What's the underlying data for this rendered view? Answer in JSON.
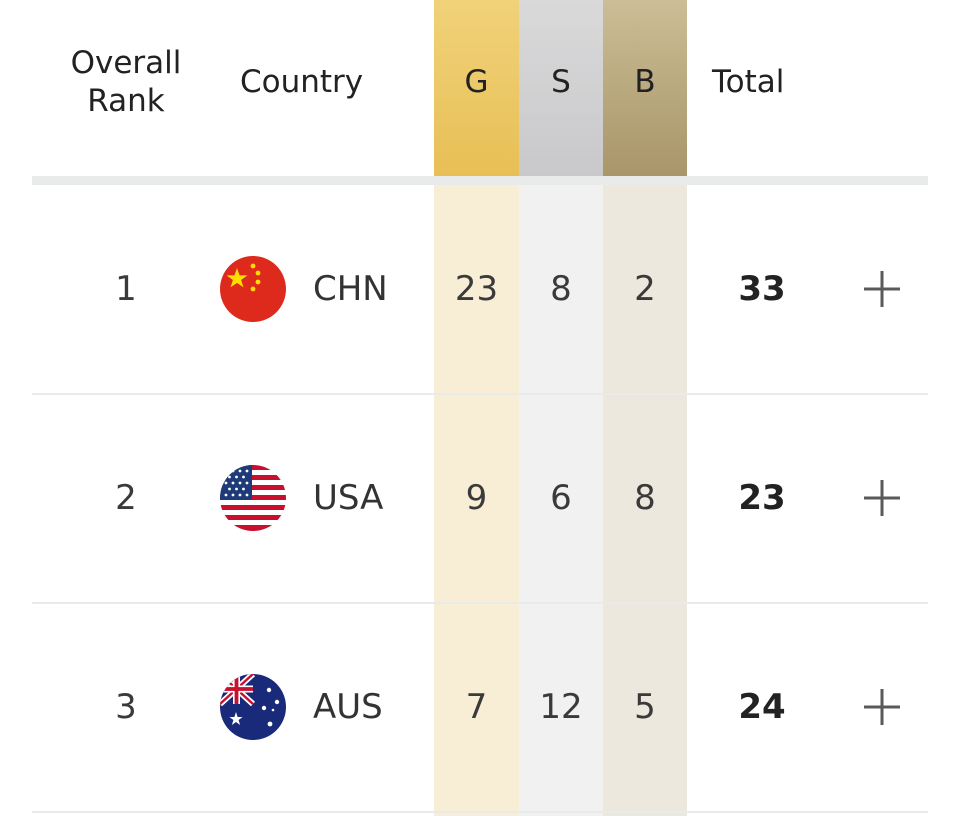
{
  "header": {
    "rank_label_line1": "Overall",
    "rank_label_line2": "Rank",
    "country_label": "Country",
    "gold_label": "G",
    "silver_label": "S",
    "bronze_label": "B",
    "total_label": "Total"
  },
  "colors": {
    "gold": "#e7bf55",
    "silver": "#c9c9cb",
    "bronze": "#a99669"
  },
  "rows": [
    {
      "rank": "1",
      "flag_icon": "china-flag-icon",
      "code": "CHN",
      "gold": "23",
      "silver": "8",
      "bronze": "2",
      "total": "33",
      "expand_icon": "plus-icon"
    },
    {
      "rank": "2",
      "flag_icon": "usa-flag-icon",
      "code": "USA",
      "gold": "9",
      "silver": "6",
      "bronze": "8",
      "total": "23",
      "expand_icon": "plus-icon"
    },
    {
      "rank": "3",
      "flag_icon": "australia-flag-icon",
      "code": "AUS",
      "gold": "7",
      "silver": "12",
      "bronze": "5",
      "total": "24",
      "expand_icon": "plus-icon"
    }
  ]
}
